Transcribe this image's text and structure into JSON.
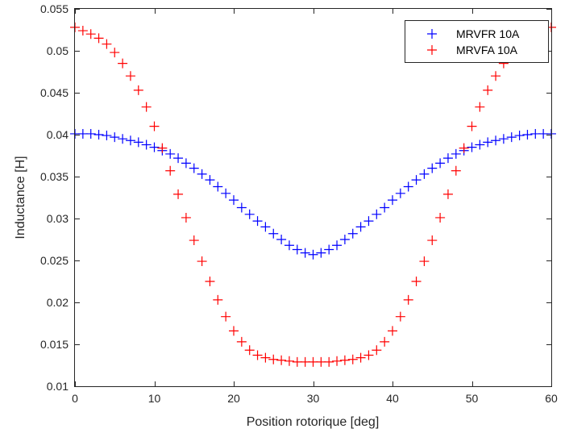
{
  "chart_data": {
    "type": "scatter",
    "xlabel": "Position rotorique [deg]",
    "ylabel": "Inductance [H]",
    "xlim": [
      0,
      60
    ],
    "ylim": [
      0.01,
      0.055
    ],
    "xticks": [
      0,
      10,
      20,
      30,
      40,
      50,
      60
    ],
    "yticks": [
      0.01,
      0.015,
      0.02,
      0.025,
      0.03,
      0.035,
      0.04,
      0.045,
      0.05,
      0.055
    ],
    "xtick_labels": [
      "0",
      "10",
      "20",
      "30",
      "40",
      "50",
      "60"
    ],
    "ytick_labels": [
      "0.01",
      "0.015",
      "0.02",
      "0.025",
      "0.03",
      "0.035",
      "0.04",
      "0.045",
      "0.05",
      "0.055"
    ],
    "grid": false,
    "marker": "+",
    "legend": {
      "position": "top-right"
    },
    "x": [
      0,
      1,
      2,
      3,
      4,
      5,
      6,
      7,
      8,
      9,
      10,
      11,
      12,
      13,
      14,
      15,
      16,
      17,
      18,
      19,
      20,
      21,
      22,
      23,
      24,
      25,
      26,
      27,
      28,
      29,
      30,
      31,
      32,
      33,
      34,
      35,
      36,
      37,
      38,
      39,
      40,
      41,
      42,
      43,
      44,
      45,
      46,
      47,
      48,
      49,
      50,
      51,
      52,
      53,
      54,
      55,
      56,
      57,
      58,
      59,
      60
    ],
    "series": [
      {
        "name": "MRVFR 10A",
        "color": "#0000ff",
        "values": [
          0.0401,
          0.0401,
          0.0401,
          0.04,
          0.0399,
          0.0397,
          0.0395,
          0.0393,
          0.0391,
          0.0388,
          0.0385,
          0.0381,
          0.0377,
          0.0372,
          0.0366,
          0.036,
          0.0353,
          0.0346,
          0.0338,
          0.033,
          0.0322,
          0.0313,
          0.0305,
          0.0297,
          0.029,
          0.0282,
          0.0275,
          0.0268,
          0.0263,
          0.0259,
          0.0257,
          0.0259,
          0.0263,
          0.0268,
          0.0275,
          0.0282,
          0.029,
          0.0297,
          0.0305,
          0.0313,
          0.0322,
          0.033,
          0.0338,
          0.0346,
          0.0353,
          0.036,
          0.0366,
          0.0372,
          0.0377,
          0.0381,
          0.0385,
          0.0388,
          0.0391,
          0.0393,
          0.0395,
          0.0397,
          0.0399,
          0.04,
          0.0401,
          0.0401,
          0.0401
        ]
      },
      {
        "name": "MRVFA 10A",
        "color": "#ff0000",
        "values": [
          0.0528,
          0.0524,
          0.052,
          0.0515,
          0.0508,
          0.0498,
          0.0485,
          0.047,
          0.0453,
          0.0433,
          0.041,
          0.0384,
          0.0357,
          0.0329,
          0.0301,
          0.0274,
          0.0249,
          0.0225,
          0.0203,
          0.0183,
          0.0166,
          0.0153,
          0.0143,
          0.0137,
          0.0134,
          0.0132,
          0.0131,
          0.013,
          0.0129,
          0.0129,
          0.0129,
          0.0129,
          0.0129,
          0.013,
          0.0131,
          0.0132,
          0.0134,
          0.0137,
          0.0143,
          0.0153,
          0.0166,
          0.0183,
          0.0203,
          0.0225,
          0.0249,
          0.0274,
          0.0301,
          0.0329,
          0.0357,
          0.0384,
          0.041,
          0.0433,
          0.0453,
          0.047,
          0.0485,
          0.0498,
          0.0508,
          0.0515,
          0.052,
          0.0524,
          0.0528
        ]
      }
    ]
  }
}
